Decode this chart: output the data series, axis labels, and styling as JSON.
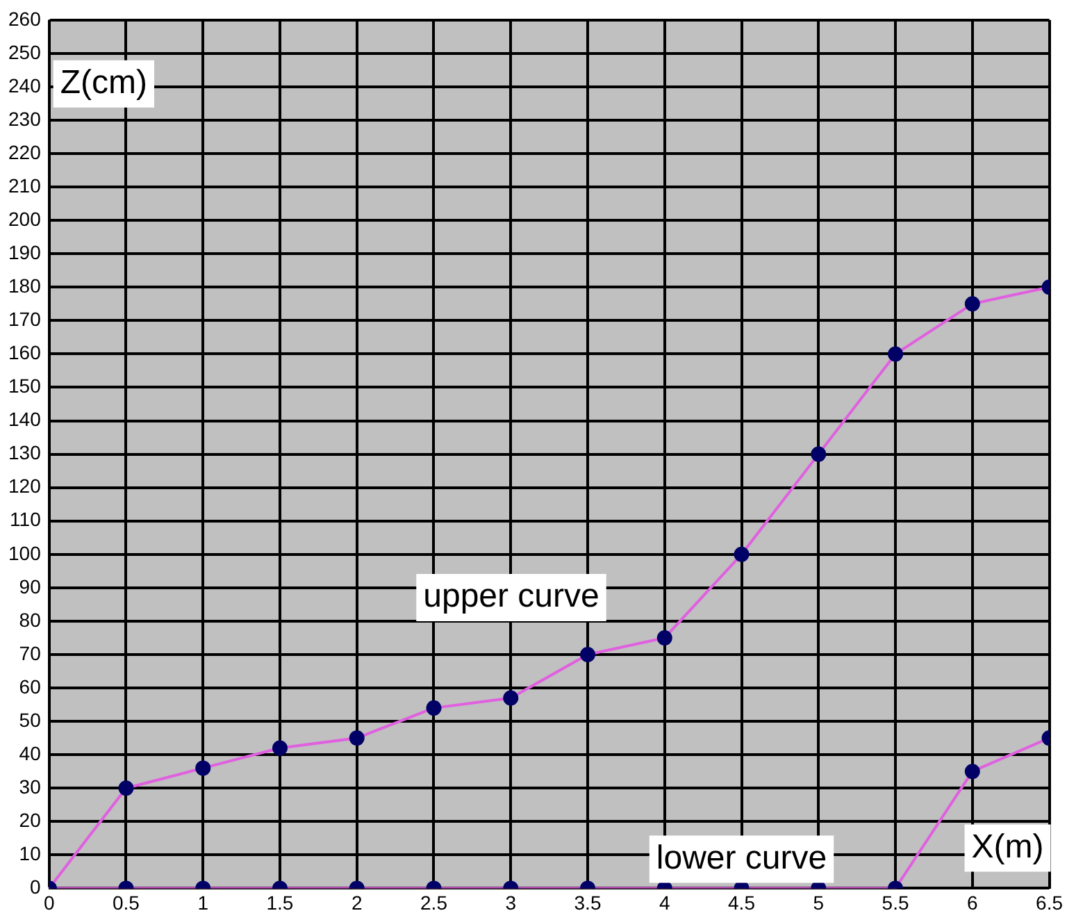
{
  "chart_data": {
    "type": "line",
    "xlabel": "X(m)",
    "ylabel": "Z(cm)",
    "x": [
      0,
      0.5,
      1,
      1.5,
      2,
      2.5,
      3,
      3.5,
      4,
      4.5,
      5,
      5.5,
      6,
      6.5
    ],
    "series": [
      {
        "name": "upper curve",
        "color": "#e060e0",
        "values": [
          0,
          30,
          36,
          42,
          45,
          54,
          57,
          70,
          75,
          100,
          130,
          160,
          175,
          180
        ]
      },
      {
        "name": "lower curve",
        "color": "#e060e0",
        "values": [
          0,
          0,
          0,
          0,
          0,
          0,
          0,
          0,
          0,
          0,
          0,
          0,
          35,
          45
        ]
      }
    ],
    "xlim": [
      0,
      6.5
    ],
    "xticks": [
      0,
      0.5,
      1,
      1.5,
      2,
      2.5,
      3,
      3.5,
      4,
      4.5,
      5,
      5.5,
      6,
      6.5
    ],
    "ylim": [
      0,
      260
    ],
    "yticks": [
      0,
      10,
      20,
      30,
      40,
      50,
      60,
      70,
      80,
      90,
      100,
      110,
      120,
      130,
      140,
      150,
      160,
      170,
      180,
      190,
      200,
      210,
      220,
      230,
      240,
      250,
      260
    ],
    "grid": true,
    "legend": false,
    "marker": "circle",
    "line_style": "solid"
  }
}
